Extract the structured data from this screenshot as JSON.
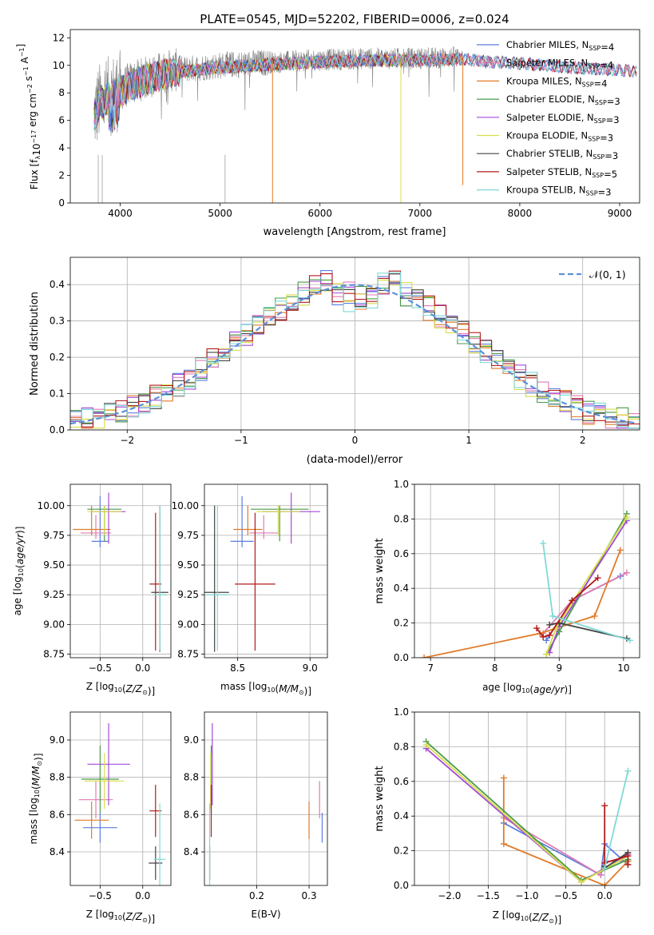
{
  "figure_title": "PLATE=0545, MJD=52202, FIBERID=0006, z=0.024",
  "colors": {
    "Chabrier MILES": "#5a7ee0",
    "Salpeter MILES": "#e07cb2",
    "Kroupa MILES": "#e07b2a",
    "Chabrier ELODIE": "#4a9b48",
    "Salpeter ELODIE": "#a24ad6",
    "Kroupa ELODIE": "#d8dd4a",
    "Chabrier STELIB": "#444444",
    "Salpeter STELIB": "#b31b1b",
    "Kroupa STELIB": "#7fd9d6",
    "data": "#808080",
    "normal": "#5b8fd9"
  },
  "chart_data": [
    {
      "type": "line",
      "title": "PLATE=0545, MJD=52202, FIBERID=0006, z=0.024",
      "xlabel": "wavelength [Angstrom, rest frame]",
      "ylabel": "Flux [f_λ 10^-17 erg cm^-2 s^-1 A^-1]",
      "ylabel_parts": [
        "Flux [f",
        "λ",
        "10",
        "−17",
        " erg cm",
        "−2",
        " s",
        "−1",
        " A",
        "−1",
        "]"
      ],
      "xlim": [
        3500,
        9200
      ],
      "ylim": [
        0,
        12.6
      ],
      "xticks": [
        4000,
        5000,
        6000,
        7000,
        8000,
        9000
      ],
      "yticks": [
        0,
        2,
        4,
        6,
        8,
        10,
        12
      ],
      "legend": [
        {
          "model": "Chabrier MILES",
          "nssp": "4"
        },
        {
          "model": "Salpeter MILES",
          "nssp": "4"
        },
        {
          "model": "Kroupa MILES",
          "nssp": "4"
        },
        {
          "model": "Chabrier ELODIE",
          "nssp": "3"
        },
        {
          "model": "Salpeter ELODIE",
          "nssp": "3"
        },
        {
          "model": "Kroupa ELODIE",
          "nssp": "3"
        },
        {
          "model": "Chabrier STELIB",
          "nssp": "3"
        },
        {
          "model": "Salpeter STELIB",
          "nssp": "5"
        },
        {
          "model": "Kroupa STELIB",
          "nssp": "3"
        }
      ],
      "legend_position": "upper right",
      "data_range": [
        3740,
        7430
      ],
      "model_continuum": {
        "x": [
          3740,
          3800,
          3900,
          4000,
          4100,
          4300,
          4500,
          5000,
          5500,
          6000,
          6500,
          7000,
          7430,
          7700,
          8000,
          8500,
          9000,
          9170
        ],
        "y": [
          6.5,
          7.3,
          7.8,
          8.2,
          8.7,
          9.2,
          9.6,
          10.0,
          10.2,
          10.4,
          10.5,
          10.5,
          10.6,
          10.4,
          10.3,
          10.0,
          9.8,
          9.7
        ]
      },
      "dips": [
        {
          "x": 5525,
          "y": 0,
          "series": "Kroupa MILES"
        },
        {
          "x": 6810,
          "y": 0,
          "series": "Kroupa ELODIE"
        },
        {
          "x": 7430,
          "y": 1.3,
          "series": "Kroupa MILES"
        }
      ]
    },
    {
      "type": "line",
      "xlabel": "(data-model)/error",
      "ylabel": "Normed distribution",
      "xlim": [
        -2.5,
        2.5
      ],
      "ylim": [
        0,
        0.475
      ],
      "xticks": [
        -2,
        -1,
        0,
        1,
        2
      ],
      "yticks": [
        0.0,
        0.1,
        0.2,
        0.3,
        0.4
      ],
      "grid": true,
      "legend": [
        "𝒩(0, 1)"
      ],
      "legend_position": "upper right",
      "reference_curve": "normal(0,1)",
      "bin_width": 0.1,
      "histogram_series": [
        "Chabrier MILES",
        "Salpeter MILES",
        "Kroupa MILES",
        "Chabrier ELODIE",
        "Salpeter ELODIE",
        "Kroupa ELODIE",
        "Chabrier STELIB",
        "Salpeter STELIB",
        "Kroupa STELIB"
      ]
    },
    {
      "type": "scatter",
      "xlabel": "Z [log10(Z/Z⊙)]",
      "ylabel": "age [log10(age/yr)]",
      "xlim": [
        -0.85,
        0.33
      ],
      "ylim": [
        8.72,
        10.18
      ],
      "xticks": [
        -0.5,
        0.0
      ],
      "xticklabels": [
        "−0.5",
        "0.0"
      ],
      "yticks": [
        8.75,
        9.0,
        9.25,
        9.5,
        9.75,
        10.0
      ],
      "grid": true,
      "points": [
        {
          "series": "Chabrier MILES",
          "x": -0.5,
          "y": 9.7,
          "xerr": 0.1,
          "yerr_lo": 0.05,
          "yerr_hi": 0.38
        },
        {
          "series": "Salpeter MILES",
          "x": -0.55,
          "y": 9.77,
          "xerr": 0.18,
          "yerr_lo": 0.05,
          "yerr_hi": 0.15
        },
        {
          "series": "Kroupa MILES",
          "x": -0.6,
          "y": 9.8,
          "xerr": 0.22,
          "yerr_lo": 0.05,
          "yerr_hi": 0.2
        },
        {
          "series": "Chabrier ELODIE",
          "x": -0.45,
          "y": 9.97,
          "xerr": 0.2,
          "yerr_lo": 0.27,
          "yerr_hi": 0.03
        },
        {
          "series": "Salpeter ELODIE",
          "x": -0.4,
          "y": 9.95,
          "xerr": 0.2,
          "yerr_lo": 0.27,
          "yerr_hi": 0.16
        },
        {
          "series": "Kroupa ELODIE",
          "x": -0.45,
          "y": 9.95,
          "xerr": 0.2,
          "yerr_lo": 0.2,
          "yerr_hi": 0.05
        },
        {
          "series": "Chabrier STELIB",
          "x": 0.2,
          "y": 9.27,
          "xerr": 0.1,
          "yerr_lo": 0.5,
          "yerr_hi": 0.73
        },
        {
          "series": "Salpeter STELIB",
          "x": 0.15,
          "y": 9.34,
          "xerr": 0.07,
          "yerr_lo": 0.56,
          "yerr_hi": 0.6
        },
        {
          "series": "Kroupa STELIB",
          "x": 0.2,
          "y": 9.25,
          "xerr": 0.08,
          "yerr_lo": 0.47,
          "yerr_hi": 0.75
        }
      ]
    },
    {
      "type": "scatter",
      "xlabel": "mass [log10(M/M⊙)]",
      "xlim": [
        8.27,
        9.12
      ],
      "ylim": [
        8.72,
        10.18
      ],
      "xticks": [
        8.5,
        9.0
      ],
      "yticks": [
        8.75,
        9.0,
        9.25,
        9.5,
        9.75,
        10.0
      ],
      "grid": true,
      "points": [
        {
          "series": "Chabrier MILES",
          "x": 8.53,
          "y": 9.7,
          "xerr": 0.08,
          "yerr_lo": 0.05,
          "yerr_hi": 0.38
        },
        {
          "series": "Salpeter MILES",
          "x": 8.68,
          "y": 9.77,
          "xerr": 0.1,
          "yerr_lo": 0.05,
          "yerr_hi": 0.15
        },
        {
          "series": "Kroupa MILES",
          "x": 8.57,
          "y": 9.8,
          "xerr": 0.1,
          "yerr_lo": 0.05,
          "yerr_hi": 0.2
        },
        {
          "series": "Chabrier ELODIE",
          "x": 8.79,
          "y": 9.97,
          "xerr": 0.2,
          "yerr_lo": 0.27,
          "yerr_hi": 0.03
        },
        {
          "series": "Salpeter ELODIE",
          "x": 8.87,
          "y": 9.95,
          "xerr": 0.2,
          "yerr_lo": 0.27,
          "yerr_hi": 0.16
        },
        {
          "series": "Kroupa ELODIE",
          "x": 8.78,
          "y": 9.95,
          "xerr": 0.15,
          "yerr_lo": 0.2,
          "yerr_hi": 0.05
        },
        {
          "series": "Chabrier STELIB",
          "x": 8.34,
          "y": 9.27,
          "xerr": 0.1,
          "yerr_lo": 0.5,
          "yerr_hi": 0.73
        },
        {
          "series": "Salpeter STELIB",
          "x": 8.62,
          "y": 9.34,
          "xerr": 0.14,
          "yerr_lo": 0.56,
          "yerr_hi": 0.6
        },
        {
          "series": "Kroupa STELIB",
          "x": 8.36,
          "y": 9.25,
          "xerr": 0.08,
          "yerr_lo": 0.47,
          "yerr_hi": 0.75
        }
      ]
    },
    {
      "type": "line",
      "xlabel": "age [log10(age/yr)]",
      "ylabel": "mass weight",
      "xlim": [
        6.75,
        10.25
      ],
      "ylim": [
        0,
        1.0
      ],
      "xticks": [
        7,
        8,
        9,
        10
      ],
      "yticks": [
        0.0,
        0.2,
        0.4,
        0.6,
        0.8,
        1.0
      ],
      "grid": true,
      "series": [
        {
          "name": "Chabrier MILES",
          "x": [
            8.8,
            9.2,
            9.95
          ],
          "y": [
            0.1,
            0.33,
            0.47
          ]
        },
        {
          "name": "Salpeter MILES",
          "x": [
            8.75,
            9.2,
            10.05
          ],
          "y": [
            0.14,
            0.33,
            0.49
          ]
        },
        {
          "name": "Kroupa MILES",
          "x": [
            6.9,
            8.7,
            9.55,
            9.95
          ],
          "y": [
            0.0,
            0.14,
            0.24,
            0.62
          ]
        },
        {
          "name": "Chabrier ELODIE",
          "x": [
            8.8,
            9.0,
            10.05
          ],
          "y": [
            0.02,
            0.15,
            0.83
          ]
        },
        {
          "name": "Salpeter ELODIE",
          "x": [
            8.85,
            9.0,
            10.05
          ],
          "y": [
            0.03,
            0.18,
            0.79
          ]
        },
        {
          "name": "Kroupa ELODIE",
          "x": [
            8.8,
            8.95,
            10.05
          ],
          "y": [
            0.02,
            0.17,
            0.81
          ]
        },
        {
          "name": "Chabrier STELIB",
          "x": [
            8.85,
            9.0,
            10.05
          ],
          "y": [
            0.19,
            0.2,
            0.11
          ]
        },
        {
          "name": "Salpeter STELIB",
          "x": [
            8.65,
            8.75,
            8.85,
            9.2,
            9.6
          ],
          "y": [
            0.17,
            0.12,
            0.13,
            0.33,
            0.46
          ]
        },
        {
          "name": "Kroupa STELIB",
          "x": [
            8.75,
            8.9,
            10.1
          ],
          "y": [
            0.66,
            0.24,
            0.1
          ]
        }
      ]
    },
    {
      "type": "scatter",
      "xlabel": "Z [log10(Z/Z⊙)]",
      "ylabel": "mass [log10(M/M⊙)]",
      "xlim": [
        -0.85,
        0.33
      ],
      "ylim": [
        8.22,
        9.15
      ],
      "xticks": [
        -0.5,
        0.0
      ],
      "xticklabels": [
        "−0.5",
        "0.0"
      ],
      "yticks": [
        8.4,
        8.6,
        8.8,
        9.0
      ],
      "grid": true,
      "points": [
        {
          "series": "Chabrier MILES",
          "x": -0.5,
          "y": 8.53,
          "xerr": 0.2,
          "yerr": 0.08
        },
        {
          "series": "Salpeter MILES",
          "x": -0.55,
          "y": 8.68,
          "xerr": 0.2,
          "yerr": 0.1
        },
        {
          "series": "Kroupa MILES",
          "x": -0.6,
          "y": 8.57,
          "xerr": 0.2,
          "yerr": 0.1
        },
        {
          "series": "Chabrier ELODIE",
          "x": -0.5,
          "y": 8.79,
          "xerr": 0.22,
          "yerr": 0.18
        },
        {
          "series": "Salpeter ELODIE",
          "x": -0.4,
          "y": 8.87,
          "xerr": 0.25,
          "yerr": 0.22
        },
        {
          "series": "Kroupa ELODIE",
          "x": -0.45,
          "y": 8.78,
          "xerr": 0.23,
          "yerr": 0.15
        },
        {
          "series": "Chabrier STELIB",
          "x": 0.15,
          "y": 8.34,
          "xerr": 0.08,
          "yerr": 0.09
        },
        {
          "series": "Salpeter STELIB",
          "x": 0.15,
          "y": 8.62,
          "xerr": 0.07,
          "yerr": 0.14
        },
        {
          "series": "Kroupa STELIB",
          "x": 0.2,
          "y": 8.36,
          "xerr": 0.07,
          "yerr": 0.3
        }
      ]
    },
    {
      "type": "scatter",
      "xlabel": "E(B-V)",
      "xlim": [
        0.1,
        0.335
      ],
      "ylim": [
        8.22,
        9.15
      ],
      "xticks": [
        0.2,
        0.3
      ],
      "yticks": [
        8.4,
        8.6,
        8.8,
        9.0
      ],
      "grid": true,
      "points": [
        {
          "series": "Chabrier MILES",
          "x": 0.325,
          "y": 8.53,
          "yerr": 0.08
        },
        {
          "series": "Salpeter MILES",
          "x": 0.32,
          "y": 8.68,
          "yerr": 0.1
        },
        {
          "series": "Kroupa MILES",
          "x": 0.3,
          "y": 8.57,
          "yerr": 0.1
        },
        {
          "series": "Chabrier ELODIE",
          "x": 0.113,
          "y": 8.79,
          "yerr": 0.18
        },
        {
          "series": "Salpeter ELODIE",
          "x": 0.115,
          "y": 8.87,
          "yerr": 0.22
        },
        {
          "series": "Kroupa ELODIE",
          "x": 0.112,
          "y": 8.78,
          "yerr": 0.15
        },
        {
          "series": "Chabrier STELIB",
          "x": 0.11,
          "y": 8.34,
          "yerr": 0.09
        },
        {
          "series": "Salpeter STELIB",
          "x": 0.113,
          "y": 8.62,
          "yerr": 0.14
        },
        {
          "series": "Kroupa STELIB",
          "x": 0.11,
          "y": 8.36,
          "yerr": 0.3
        }
      ]
    },
    {
      "type": "line",
      "xlabel": "Z [log10(Z/Z⊙)]",
      "ylabel": "mass weight",
      "xlim": [
        -2.45,
        0.45
      ],
      "ylim": [
        0,
        1.0
      ],
      "xticks": [
        -2.0,
        -1.5,
        -1.0,
        -0.5,
        0.0
      ],
      "xticklabels": [
        "−2.0",
        "−1.5",
        "−1.0",
        "−0.5",
        "0.0"
      ],
      "yticks": [
        0.0,
        0.2,
        0.4,
        0.6,
        0.8,
        1.0
      ],
      "grid": true,
      "series": [
        {
          "name": "Chabrier MILES",
          "x": [
            -1.3,
            -0.05,
            0.0,
            0.3
          ],
          "y": [
            0.36,
            0.06,
            0.24,
            0.12
          ]
        },
        {
          "name": "Salpeter MILES",
          "x": [
            -1.3,
            -0.05,
            0.0,
            0.3
          ],
          "y": [
            0.39,
            0.06,
            0.14,
            0.14
          ]
        },
        {
          "name": "Kroupa MILES",
          "x": [
            -1.3,
            -1.3,
            0.0,
            0.3
          ],
          "y": [
            0.62,
            0.24,
            0.0,
            0.14
          ]
        },
        {
          "name": "Chabrier ELODIE",
          "x": [
            -2.3,
            -0.3,
            0.3
          ],
          "y": [
            0.83,
            0.03,
            0.15
          ]
        },
        {
          "name": "Salpeter ELODIE",
          "x": [
            -2.3,
            -0.3,
            0.3
          ],
          "y": [
            0.79,
            0.02,
            0.18
          ]
        },
        {
          "name": "Kroupa ELODIE",
          "x": [
            -2.3,
            -0.3,
            0.3
          ],
          "y": [
            0.81,
            0.02,
            0.17
          ]
        },
        {
          "name": "Chabrier STELIB",
          "x": [
            0.0,
            0.0,
            0.3
          ],
          "y": [
            0.11,
            0.1,
            0.19
          ]
        },
        {
          "name": "Salpeter STELIB",
          "x": [
            0.0,
            0.0,
            0.3,
            0.3
          ],
          "y": [
            0.46,
            0.13,
            0.17,
            0.12
          ]
        },
        {
          "name": "Kroupa STELIB",
          "x": [
            0.0,
            0.3
          ],
          "y": [
            0.1,
            0.66
          ]
        }
      ]
    }
  ]
}
